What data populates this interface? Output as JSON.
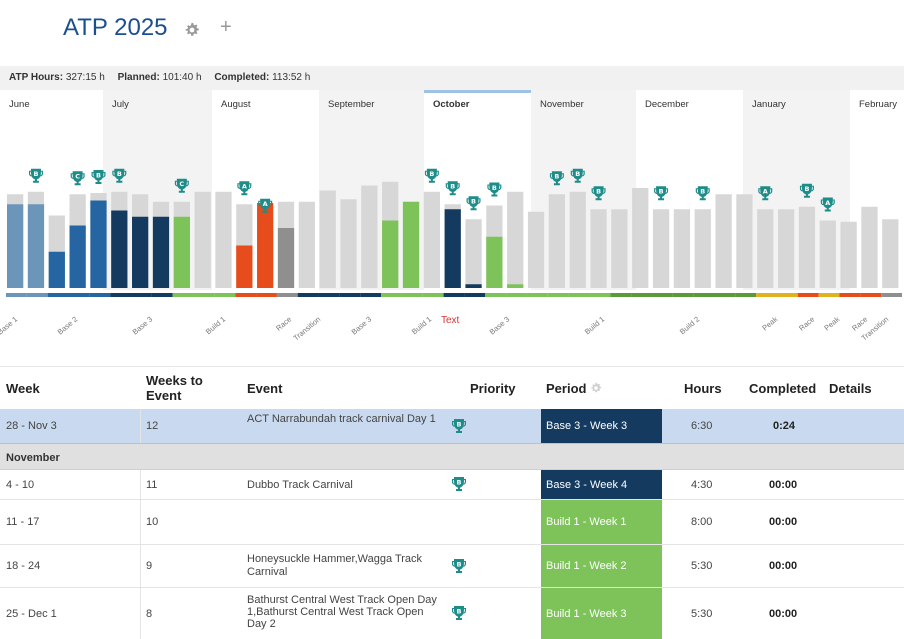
{
  "header": {
    "title": "ATP 2025",
    "plus_label": "+"
  },
  "stats": {
    "hours_label": "ATP Hours:",
    "hours_value": "327:15 h",
    "planned_label": "Planned:",
    "planned_value": "101:40 h",
    "completed_label": "Completed:",
    "completed_value": "113:52 h"
  },
  "colors": {
    "title": "#1b4f91",
    "base1": "#6c95ba",
    "base2": "#2565a1",
    "base3": "#143a5f",
    "build1": "#7ec25a",
    "build2": "#5a9a3b",
    "race": "#e74c1c",
    "transition": "#8f8f8f",
    "peak": "#e0b21f",
    "planned": "#d7d7d7",
    "trophy": "#1e8c89",
    "selected_row": "#c9daf0"
  },
  "chart_data": {
    "type": "bar",
    "title": "",
    "ylim": [
      0,
      100
    ],
    "months": [
      "June",
      "July",
      "August",
      "September",
      "October",
      "November",
      "December",
      "January",
      "February"
    ],
    "current_month": "October",
    "series": [
      {
        "name": "Planned",
        "values": [
          75,
          77,
          58,
          75,
          76,
          77,
          75,
          69,
          69,
          77,
          77,
          67,
          53,
          69,
          69,
          78,
          71,
          82,
          85,
          69,
          77,
          67,
          55,
          66,
          77,
          61,
          75,
          77,
          63,
          63,
          80,
          63,
          63,
          63,
          75,
          75,
          63,
          63,
          65,
          54,
          53,
          65,
          55
        ]
      },
      {
        "name": "Completed",
        "values": [
          67,
          67,
          29,
          50,
          70,
          62,
          57,
          57,
          57,
          0,
          0,
          34,
          68,
          48,
          0,
          0,
          0,
          0,
          54,
          69,
          0,
          63,
          3,
          41,
          3,
          0,
          0,
          0,
          0,
          0,
          0,
          0,
          0,
          0,
          0,
          0,
          0,
          0,
          0,
          0,
          0,
          0,
          0
        ]
      }
    ],
    "phase_of_bar": [
      "base1",
      "base1",
      "base2",
      "base2",
      "base2",
      "base3",
      "base3",
      "base3",
      "build1",
      "build1",
      "build1",
      "race",
      "race",
      "transition",
      "base3",
      "base3",
      "base3",
      "base3",
      "build1",
      "build1",
      "build1",
      "base3",
      "base3",
      "build1",
      "build1",
      "build1",
      "build1",
      "build1",
      "build1",
      "build2",
      "build2",
      "build2",
      "build2",
      "build2",
      "build2",
      "build2",
      "peak",
      "peak",
      "race",
      "peak",
      "race",
      "race",
      "transition"
    ],
    "trophies": [
      {
        "bar": 1,
        "label": "B"
      },
      {
        "bar": 3,
        "label": "C"
      },
      {
        "bar": 4,
        "label": "B"
      },
      {
        "bar": 5,
        "label": "B"
      },
      {
        "bar": 8,
        "label": "C"
      },
      {
        "bar": 11,
        "label": "A"
      },
      {
        "bar": 12,
        "label": "A"
      },
      {
        "bar": 20,
        "label": "B"
      },
      {
        "bar": 21,
        "label": "B"
      },
      {
        "bar": 22,
        "label": "B"
      },
      {
        "bar": 23,
        "label": "B"
      },
      {
        "bar": 26,
        "label": "B"
      },
      {
        "bar": 27,
        "label": "B"
      },
      {
        "bar": 28,
        "label": "B"
      },
      {
        "bar": 31,
        "label": "B"
      },
      {
        "bar": 33,
        "label": "B"
      },
      {
        "bar": 36,
        "label": "A"
      },
      {
        "bar": 38,
        "label": "B"
      },
      {
        "bar": 39,
        "label": "A"
      }
    ],
    "phase_labels": [
      "Base 1",
      "Base 2",
      "Base 3",
      "Build 1",
      "Race",
      "Transition",
      "Base 3",
      "Build 1",
      "Base 3",
      "Build 1",
      "Build 2",
      "Peak",
      "Race",
      "Peak",
      "Race",
      "Transition"
    ],
    "annotation": "Text"
  },
  "table": {
    "headers": {
      "week": "Week",
      "weeks_to_event": "Weeks to Event",
      "event": "Event",
      "priority": "Priority",
      "period": "Period",
      "hours": "Hours",
      "completed": "Completed",
      "details": "Details"
    },
    "rows": [
      {
        "week": "28 - Nov 3",
        "weeks_to_event": "12",
        "event": "ACT Narrabundah track carnival Day 1",
        "priority": "B",
        "period": "Base 3 - Week 3",
        "period_color": "#143a5f",
        "hours": "6:30",
        "completed": "0:24"
      },
      {
        "month": "November"
      },
      {
        "week": "4 - 10",
        "weeks_to_event": "11",
        "event": "Dubbo Track Carnival",
        "priority": "B",
        "period": "Base 3 - Week 4",
        "period_color": "#143a5f",
        "hours": "4:30",
        "completed": "00:00"
      },
      {
        "week": "11 - 17",
        "weeks_to_event": "10",
        "event": "",
        "priority": "",
        "period": "Build 1 - Week 1",
        "period_color": "#7ec25a",
        "hours": "8:00",
        "completed": "00:00"
      },
      {
        "week": "18 - 24",
        "weeks_to_event": "9",
        "event": "Honeysuckle Hammer,Wagga Track Carnival",
        "priority": "B",
        "period": "Build 1 - Week 2",
        "period_color": "#7ec25a",
        "hours": "5:30",
        "completed": "00:00"
      },
      {
        "week": "25 - Dec 1",
        "weeks_to_event": "8",
        "event": "Bathurst Central West Track Open Day 1,Bathurst Central West Track Open Day 2",
        "priority": "B",
        "period": "Build 1 - Week 3",
        "period_color": "#7ec25a",
        "hours": "5:30",
        "completed": "00:00"
      }
    ]
  }
}
